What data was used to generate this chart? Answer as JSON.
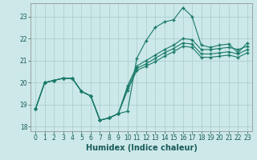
{
  "xlabel": "Humidex (Indice chaleur)",
  "bg_color": "#cce8e8",
  "grid_color": "#aacccc",
  "line_color": "#1a7a6a",
  "xlim": [
    -0.5,
    23.5
  ],
  "ylim": [
    17.8,
    23.6
  ],
  "yticks": [
    18,
    19,
    20,
    21,
    22,
    23
  ],
  "xticks": [
    0,
    1,
    2,
    3,
    4,
    5,
    6,
    7,
    8,
    9,
    10,
    11,
    12,
    13,
    14,
    15,
    16,
    17,
    18,
    19,
    20,
    21,
    22,
    23
  ],
  "series": [
    [
      18.8,
      20.0,
      20.1,
      20.2,
      20.2,
      19.6,
      19.4,
      18.3,
      18.4,
      18.6,
      18.7,
      21.1,
      21.9,
      22.5,
      22.75,
      22.85,
      23.4,
      23.0,
      21.7,
      21.6,
      21.7,
      21.75,
      21.35,
      21.8
    ],
    [
      18.8,
      20.0,
      20.1,
      20.2,
      20.2,
      19.6,
      19.4,
      18.3,
      18.4,
      18.6,
      19.85,
      20.75,
      21.0,
      21.25,
      21.5,
      21.7,
      22.0,
      21.95,
      21.5,
      21.5,
      21.55,
      21.6,
      21.5,
      21.65
    ],
    [
      18.8,
      20.0,
      20.1,
      20.2,
      20.2,
      19.6,
      19.4,
      18.3,
      18.4,
      18.6,
      19.75,
      20.65,
      20.85,
      21.1,
      21.35,
      21.55,
      21.8,
      21.75,
      21.3,
      21.3,
      21.35,
      21.4,
      21.3,
      21.5
    ],
    [
      18.8,
      20.0,
      20.1,
      20.2,
      20.2,
      19.6,
      19.4,
      18.3,
      18.4,
      18.6,
      19.65,
      20.55,
      20.75,
      20.95,
      21.2,
      21.4,
      21.65,
      21.6,
      21.15,
      21.15,
      21.2,
      21.25,
      21.15,
      21.35
    ]
  ]
}
